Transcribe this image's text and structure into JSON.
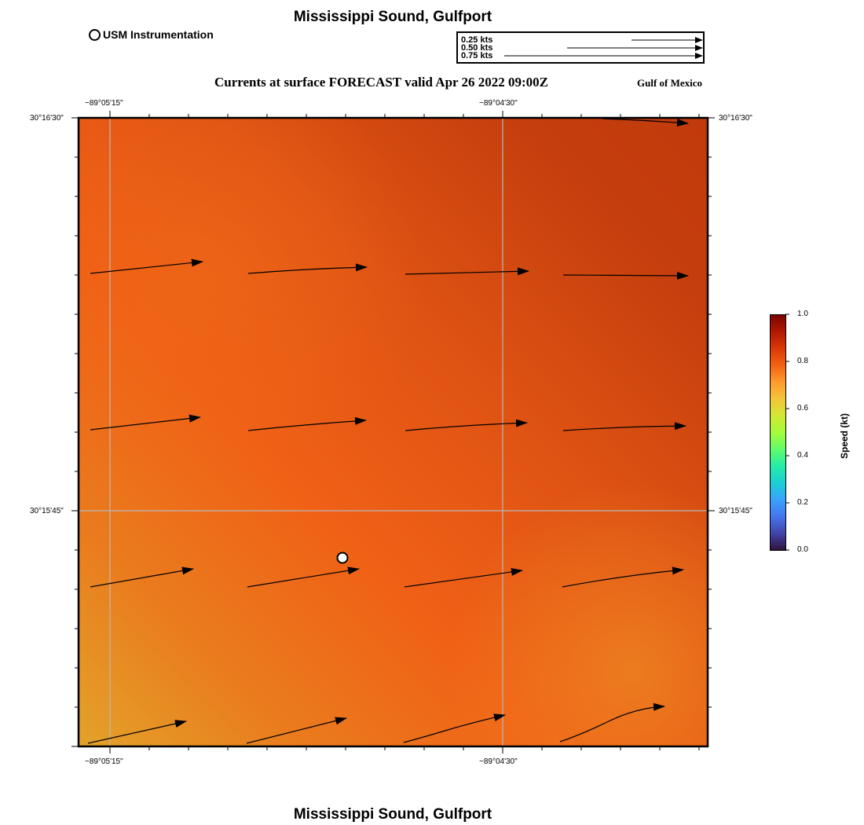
{
  "header": {
    "title": "Mississippi Sound, Gulfport",
    "subtitle": "Currents at surface FORECAST valid Apr 26 2022 09:00Z",
    "region_label": "Gulf of Mexico",
    "station_legend": "USM Instrumentation"
  },
  "footer": {
    "title": "Mississippi Sound, Gulfport"
  },
  "vector_scale": {
    "entries": [
      {
        "label": "0.25 kts",
        "speed": 0.25
      },
      {
        "label": "0.50 kts",
        "speed": 0.5
      },
      {
        "label": "0.75 kts",
        "speed": 0.75
      }
    ]
  },
  "map": {
    "lon_ticks": [
      "−89°05'15\"",
      "−89°04'30\""
    ],
    "lat_ticks": [
      "30°16'30\"",
      "30°15'45\""
    ],
    "background_colors": [
      "#e3a22a",
      "#ef6d18",
      "#f06016",
      "#de5213",
      "#c53e0d"
    ]
  },
  "colorbar": {
    "title": "Speed (kt)",
    "ticks": [
      "1.0",
      "0.8",
      "0.6",
      "0.4",
      "0.2",
      "0.0"
    ],
    "range": [
      0.0,
      1.0
    ],
    "colors": [
      "#30123b",
      "#4145ab",
      "#4675ed",
      "#39a2fc",
      "#1bcfd4",
      "#24eca6",
      "#61fc6c",
      "#a4fc3b",
      "#d1e834",
      "#f3c63a",
      "#fe9b2d",
      "#f36315",
      "#d93806",
      "#b11901",
      "#7a0402"
    ]
  },
  "station": {
    "name": "USM Instrumentation"
  }
}
